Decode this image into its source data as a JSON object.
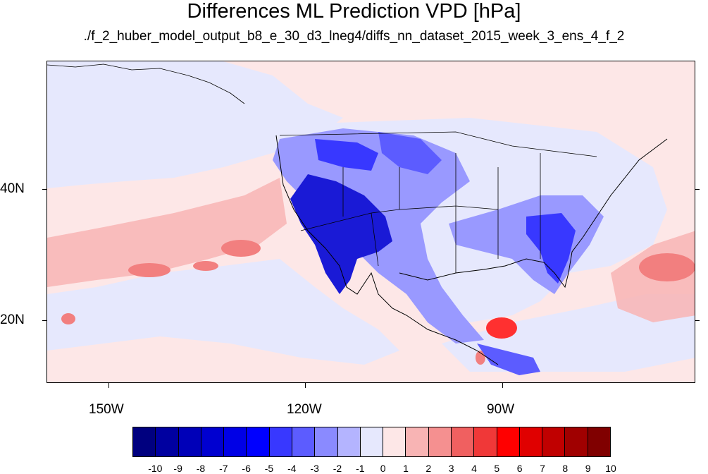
{
  "header": {
    "title": "Differences ML Prediction VPD [hPa]",
    "subtitle": "./f_2_huber_model_output_b8_e_30_d3_lneg4/diffs_nn_dataset_2015_week_3_ens_4_f_2"
  },
  "map": {
    "lat_labels": [
      "40N",
      "20N"
    ],
    "lon_labels": [
      "150W",
      "120W",
      "90W"
    ],
    "colors": {
      "background_light_pink": "#fde7e7",
      "light_blue": "#e6e8fd",
      "medium_blue": "#9999ff",
      "dark_blue": "#0000cc",
      "light_red": "#f8b4b4",
      "medium_red": "#f27f7f",
      "bright_red": "#ff3030"
    }
  },
  "colorbar": {
    "labels": [
      "-10",
      "-9",
      "-8",
      "-7",
      "-6",
      "-5",
      "-4",
      "-3",
      "-2",
      "-1",
      "0",
      "1",
      "2",
      "3",
      "4",
      "5",
      "6",
      "7",
      "8",
      "9",
      "10"
    ],
    "colors": [
      "#00007f",
      "#0000a0",
      "#0000b8",
      "#0000d0",
      "#0000e6",
      "#0000ff",
      "#3838ff",
      "#5c5cff",
      "#8a8aff",
      "#b4b4ff",
      "#e6e8fd",
      "#fde7e7",
      "#f8b4b4",
      "#f59090",
      "#f06060",
      "#f03838",
      "#ff0000",
      "#e00000",
      "#c00000",
      "#a00000",
      "#800000"
    ]
  }
}
